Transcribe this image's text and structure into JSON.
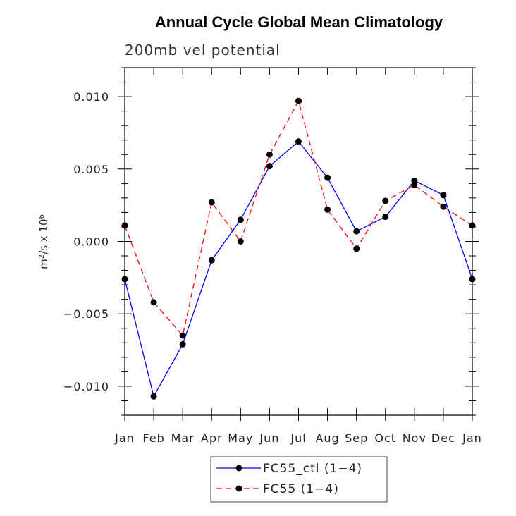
{
  "chart_data": {
    "type": "line",
    "title": "Annual Cycle Global Mean Climatology",
    "subtitle": "200mb vel potential",
    "ylabel_base": "m",
    "ylabel_exp1": "2",
    "ylabel_mid": "/s x 10",
    "ylabel_exp2": "6",
    "xlabel": "",
    "categories": [
      "Jan",
      "Feb",
      "Mar",
      "Apr",
      "May",
      "Jun",
      "Jul",
      "Aug",
      "Sep",
      "Oct",
      "Nov",
      "Dec",
      "Jan"
    ],
    "ylim": [
      -0.012,
      0.012
    ],
    "yticks": [
      -0.01,
      -0.005,
      0.0,
      0.005,
      0.01
    ],
    "ytick_labels": [
      "−0.010",
      "−0.005",
      "0.000",
      "0.005",
      "0.010"
    ],
    "series": [
      {
        "name": "FC55_ctl (1−4)",
        "color": "#0000ff",
        "dash": "solid",
        "values": [
          -0.0026,
          -0.0107,
          -0.0071,
          -0.0013,
          0.0015,
          0.0052,
          0.0069,
          0.0044,
          0.0007,
          0.0017,
          0.0042,
          0.0032,
          -0.0026
        ]
      },
      {
        "name": "FC55 (1−4)",
        "color": "#ff0000",
        "dash": "dashed",
        "values": [
          0.0011,
          -0.0042,
          -0.0065,
          0.0027,
          0.0,
          0.006,
          0.0097,
          0.0022,
          -0.0005,
          0.0028,
          0.0039,
          0.0024,
          0.0011
        ]
      }
    ],
    "legend_position": "bottom-center",
    "grid": false,
    "marker_color": "#000000"
  }
}
